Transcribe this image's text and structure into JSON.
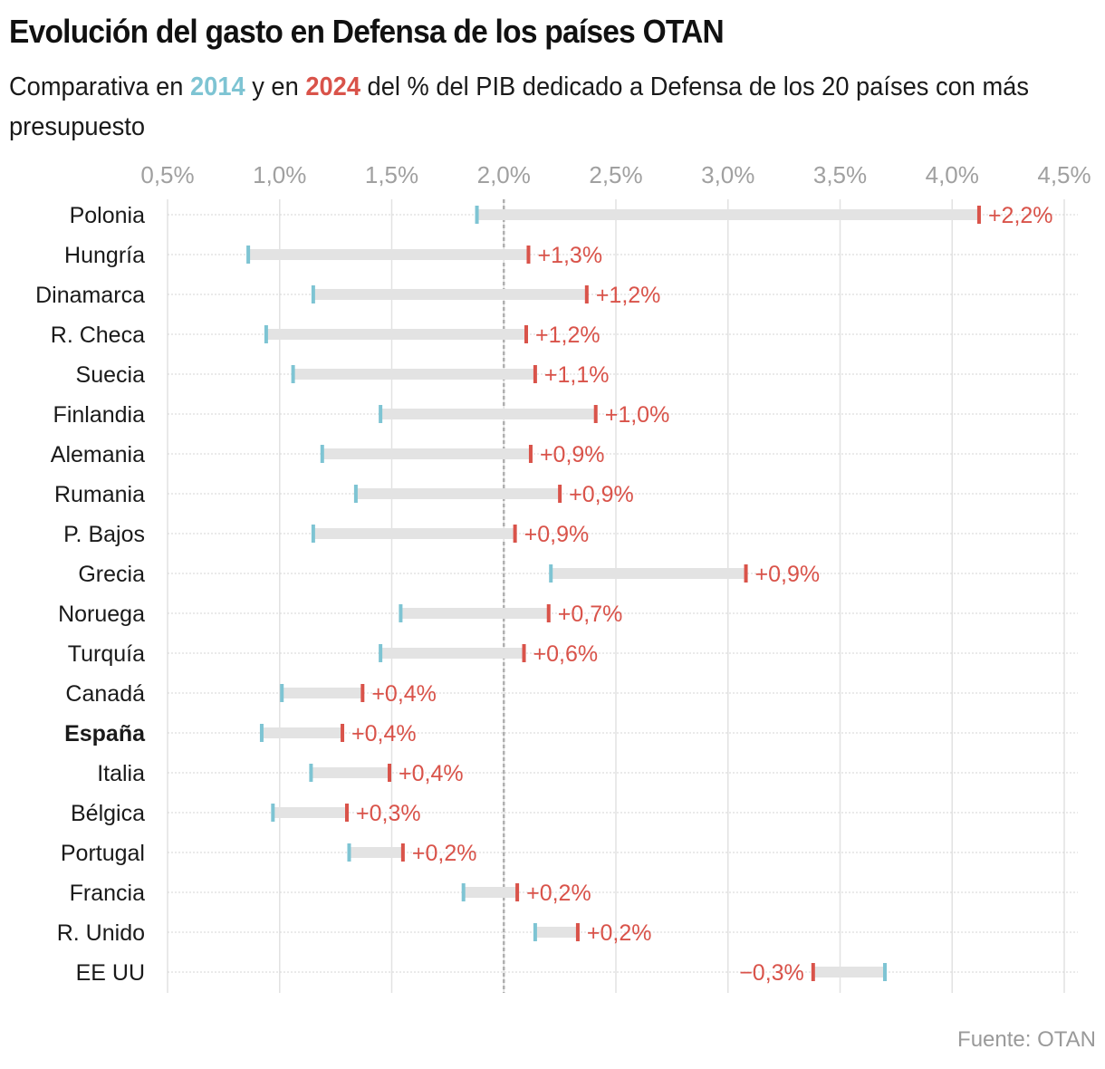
{
  "title": "Evolución del gasto en Defensa de los países OTAN",
  "subtitle": {
    "part1": "Comparativa en ",
    "year_a": "2014",
    "part2": " y en ",
    "year_b": "2024",
    "part3": " del % del PIB dedicado a Defensa de los 20 países con más presupuesto"
  },
  "source": "Fuente: OTAN",
  "colors": {
    "year_2014": "#7ec4d3",
    "year_2024": "#d9534a",
    "bar": "#e3e3e3",
    "grid": "#e2e2e2",
    "axis_text": "#a0a0a0",
    "reference": "#b0b0b0"
  },
  "chart_data": {
    "type": "dumbbell",
    "title": "Evolución del gasto en Defensa de los países OTAN",
    "xlabel": "% del PIB",
    "ylabel": "",
    "xlim": [
      0.5,
      4.5
    ],
    "xticks": [
      0.5,
      1.0,
      1.5,
      2.0,
      2.5,
      3.0,
      3.5,
      4.0,
      4.5
    ],
    "xtick_labels": [
      "0,5%",
      "1,0%",
      "1,5%",
      "2,0%",
      "2,5%",
      "3,0%",
      "3,5%",
      "4,0%",
      "4,5%"
    ],
    "reference_line": 2.0,
    "grid": true,
    "series": [
      {
        "name": "2014",
        "color": "#7ec4d3"
      },
      {
        "name": "2024",
        "color": "#d9534a"
      }
    ],
    "rows": [
      {
        "country": "Polonia",
        "v2014": 1.88,
        "v2024": 4.12,
        "change": "+2,2%",
        "highlight": false
      },
      {
        "country": "Hungría",
        "v2014": 0.86,
        "v2024": 2.11,
        "change": "+1,3%",
        "highlight": false
      },
      {
        "country": "Dinamarca",
        "v2014": 1.15,
        "v2024": 2.37,
        "change": "+1,2%",
        "highlight": false
      },
      {
        "country": "R. Checa",
        "v2014": 0.94,
        "v2024": 2.1,
        "change": "+1,2%",
        "highlight": false
      },
      {
        "country": "Suecia",
        "v2014": 1.06,
        "v2024": 2.14,
        "change": "+1,1%",
        "highlight": false
      },
      {
        "country": "Finlandia",
        "v2014": 1.45,
        "v2024": 2.41,
        "change": "+1,0%",
        "highlight": false
      },
      {
        "country": "Alemania",
        "v2014": 1.19,
        "v2024": 2.12,
        "change": "+0,9%",
        "highlight": false
      },
      {
        "country": "Rumania",
        "v2014": 1.34,
        "v2024": 2.25,
        "change": "+0,9%",
        "highlight": false
      },
      {
        "country": "P. Bajos",
        "v2014": 1.15,
        "v2024": 2.05,
        "change": "+0,9%",
        "highlight": false
      },
      {
        "country": "Grecia",
        "v2014": 2.21,
        "v2024": 3.08,
        "change": "+0,9%",
        "highlight": false
      },
      {
        "country": "Noruega",
        "v2014": 1.54,
        "v2024": 2.2,
        "change": "+0,7%",
        "highlight": false
      },
      {
        "country": "Turquía",
        "v2014": 1.45,
        "v2024": 2.09,
        "change": "+0,6%",
        "highlight": false
      },
      {
        "country": "Canadá",
        "v2014": 1.01,
        "v2024": 1.37,
        "change": "+0,4%",
        "highlight": false
      },
      {
        "country": "España",
        "v2014": 0.92,
        "v2024": 1.28,
        "change": "+0,4%",
        "highlight": true
      },
      {
        "country": "Italia",
        "v2014": 1.14,
        "v2024": 1.49,
        "change": "+0,4%",
        "highlight": false
      },
      {
        "country": "Bélgica",
        "v2014": 0.97,
        "v2024": 1.3,
        "change": "+0,3%",
        "highlight": false
      },
      {
        "country": "Portugal",
        "v2014": 1.31,
        "v2024": 1.55,
        "change": "+0,2%",
        "highlight": false
      },
      {
        "country": "Francia",
        "v2014": 1.82,
        "v2024": 2.06,
        "change": "+0,2%",
        "highlight": false
      },
      {
        "country": "R. Unido",
        "v2014": 2.14,
        "v2024": 2.33,
        "change": "+0,2%",
        "highlight": false
      },
      {
        "country": "EE UU",
        "v2014": 3.7,
        "v2024": 3.38,
        "change": "−0,3%",
        "highlight": false
      }
    ]
  }
}
